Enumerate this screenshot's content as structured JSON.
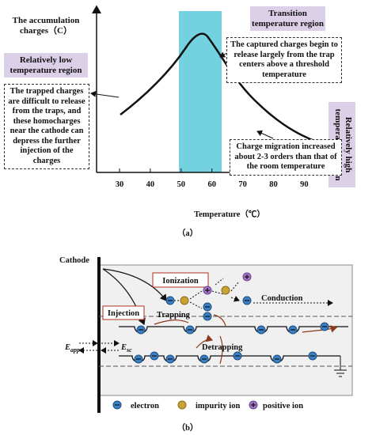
{
  "figure_a": {
    "y_axis_label": "The accumulation charges（C）",
    "x_axis_label": "Temperature（℃）",
    "x_ticks": [
      "30",
      "40",
      "50",
      "60",
      "70",
      "80",
      "90"
    ],
    "regions": {
      "transition": "Transition temperature region",
      "low": "Relatively low temperature region",
      "high": "Relatively high temperature region"
    },
    "annotations": [
      "The captured charges begin to release largely from the trap centers above a threshold temperature",
      "The trapped charges are difficult to release from the traps, and these homocharges near the cathode can depress the further injection of the charges",
      "Charge migration increased about 2-3 orders than that of the room temperature"
    ],
    "caption": "（a）"
  },
  "figure_b": {
    "cathode": "Cathode",
    "ionization": "Ionization",
    "injection": "Injection",
    "trapping": "Trapping",
    "conduction": "Conduction",
    "detrapping": "Detrapping",
    "applied_field": {
      "symbol": "E",
      "subscript": "app"
    },
    "space_charge_field": {
      "symbol": "E",
      "subscript": "sc"
    },
    "legend": {
      "electron": "electron",
      "impurity_ion": "impurity ion",
      "positive_ion": "positive ion"
    },
    "caption": "（b）"
  }
}
